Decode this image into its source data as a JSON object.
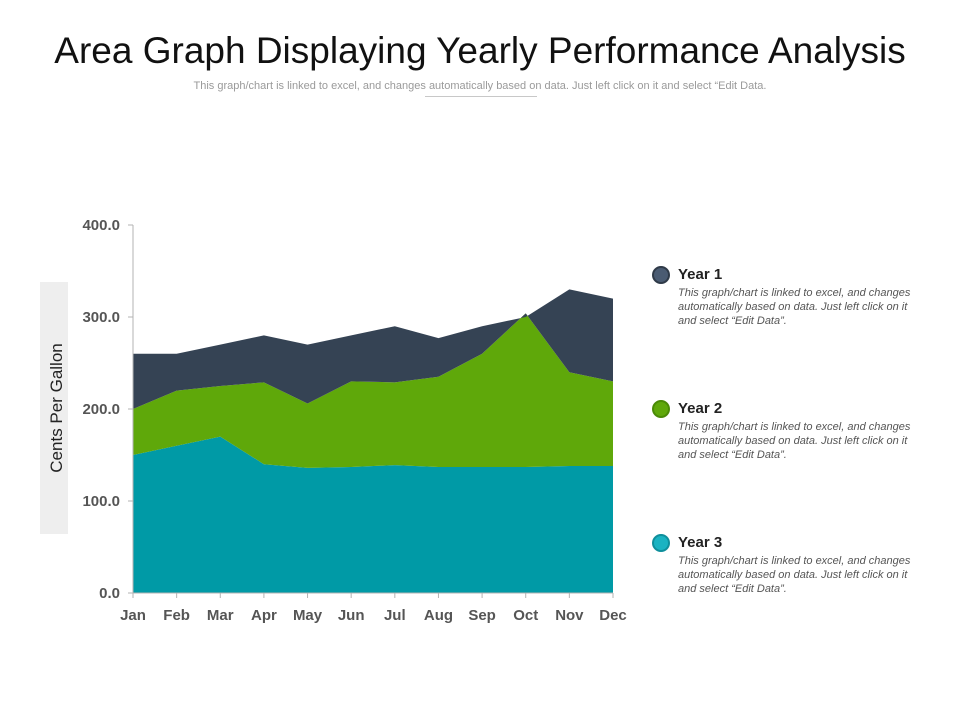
{
  "title": "Area Graph Displaying Yearly Performance Analysis",
  "subtitle": "This graph/chart is linked to excel, and changes automatically based on data. Just left click on it and select “Edit Data.",
  "chart_data": {
    "type": "area",
    "stacked": true,
    "categories": [
      "Jan",
      "Feb",
      "Mar",
      "Apr",
      "May",
      "Jun",
      "Jul",
      "Aug",
      "Sep",
      "Oct",
      "Nov",
      "Dec"
    ],
    "series": [
      {
        "name": "Year 3",
        "color": "#009aa6",
        "values": [
          150,
          160,
          170,
          140,
          136,
          137,
          139,
          137,
          137,
          137,
          138,
          138
        ]
      },
      {
        "name": "Year 2",
        "color": "#5fa80a",
        "values": [
          50,
          60,
          55,
          89,
          70,
          93,
          90,
          98,
          123,
          167,
          102,
          92
        ]
      },
      {
        "name": "Year 1",
        "color": "#354354",
        "values": [
          60,
          40,
          45,
          51,
          64,
          50,
          61,
          42,
          30,
          -4,
          90,
          90
        ]
      }
    ],
    "ylabel": "Cents Per Gallon",
    "ylim": [
      0,
      400
    ],
    "yticks": [
      "0.0",
      "100.0",
      "200.0",
      "300.0",
      "400.0"
    ],
    "ytick_values": [
      0,
      100,
      200,
      300,
      400
    ],
    "grid": false
  },
  "legend": [
    {
      "name": "Year 1",
      "color": "#4a5b72",
      "description": "This graph/chart is linked to excel, and changes automatically based on data. Just left click on it and select “Edit Data”."
    },
    {
      "name": "Year 2",
      "color": "#5fa80a",
      "description": "This graph/chart is linked to excel, and changes automatically based on data. Just left click on it and select “Edit Data”."
    },
    {
      "name": "Year 3",
      "color": "#1ab3c2",
      "description": "This graph/chart is linked to excel, and changes automatically based on data. Just left click on it and select “Edit Data”."
    }
  ]
}
